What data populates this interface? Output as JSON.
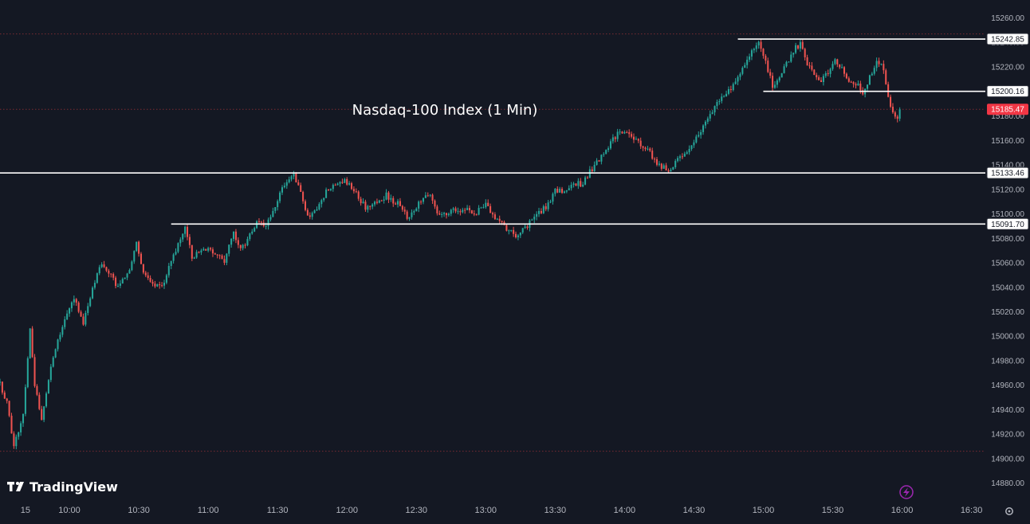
{
  "chart_data": {
    "type": "candlestick",
    "title": "Nasdaq-100 Index (1 Min)",
    "brand": "TradingView",
    "colors": {
      "background": "#141823",
      "up": "#26a69a",
      "down": "#ef5350",
      "level": "#ffffff",
      "last_price": "#f23645",
      "dotted": "#7a2a33",
      "text": "#b2b5be"
    },
    "ylim": [
      14870,
      15265
    ],
    "yticks": [
      14880,
      14900,
      14920,
      14940,
      14960,
      14980,
      15000,
      15020,
      15040,
      15060,
      15080,
      15100,
      15120,
      15140,
      15160,
      15180,
      15200,
      15220,
      15240,
      15260
    ],
    "xlim": [
      "09:30",
      "16:36"
    ],
    "xticks": [
      {
        "t": "09:41",
        "label": "15"
      },
      {
        "t": "10:00",
        "label": "10:00"
      },
      {
        "t": "10:30",
        "label": "10:30"
      },
      {
        "t": "11:00",
        "label": "11:00"
      },
      {
        "t": "11:30",
        "label": "11:30"
      },
      {
        "t": "12:00",
        "label": "12:00"
      },
      {
        "t": "12:30",
        "label": "12:30"
      },
      {
        "t": "13:00",
        "label": "13:00"
      },
      {
        "t": "13:30",
        "label": "13:30"
      },
      {
        "t": "14:00",
        "label": "14:00"
      },
      {
        "t": "14:30",
        "label": "14:30"
      },
      {
        "t": "15:00",
        "label": "15:00"
      },
      {
        "t": "15:30",
        "label": "15:30"
      },
      {
        "t": "16:00",
        "label": "16:00"
      },
      {
        "t": "16:30",
        "label": "16:30"
      }
    ],
    "levels": [
      {
        "label": "15242.85",
        "value": 15242.85,
        "from": "14:49"
      },
      {
        "label": "15200.16",
        "value": 15200.16,
        "from": "15:00"
      },
      {
        "label": "15133.46",
        "value": 15133.46,
        "from": "09:30"
      },
      {
        "label": "15091.70",
        "value": 15091.7,
        "from": "10:44"
      }
    ],
    "last_price": {
      "label": "15185.47",
      "value": 15185.47
    },
    "dotted_lines": [
      15247,
      15185.47,
      14906
    ],
    "price_path": [
      {
        "t": "09:30",
        "v": 14962
      },
      {
        "t": "09:33",
        "v": 14945
      },
      {
        "t": "09:36",
        "v": 14910
      },
      {
        "t": "09:40",
        "v": 14935
      },
      {
        "t": "09:43",
        "v": 15005
      },
      {
        "t": "09:45",
        "v": 14960
      },
      {
        "t": "09:48",
        "v": 14932
      },
      {
        "t": "09:52",
        "v": 14975
      },
      {
        "t": "09:57",
        "v": 15010
      },
      {
        "t": "10:02",
        "v": 15030
      },
      {
        "t": "10:06",
        "v": 15012
      },
      {
        "t": "10:10",
        "v": 15040
      },
      {
        "t": "10:14",
        "v": 15060
      },
      {
        "t": "10:18",
        "v": 15050
      },
      {
        "t": "10:21",
        "v": 15040
      },
      {
        "t": "10:25",
        "v": 15050
      },
      {
        "t": "10:29",
        "v": 15076
      },
      {
        "t": "10:32",
        "v": 15050
      },
      {
        "t": "10:37",
        "v": 15040
      },
      {
        "t": "10:41",
        "v": 15045
      },
      {
        "t": "10:45",
        "v": 15065
      },
      {
        "t": "10:50",
        "v": 15088
      },
      {
        "t": "10:53",
        "v": 15065
      },
      {
        "t": "10:58",
        "v": 15072
      },
      {
        "t": "11:03",
        "v": 15068
      },
      {
        "t": "11:07",
        "v": 15062
      },
      {
        "t": "11:11",
        "v": 15085
      },
      {
        "t": "11:14",
        "v": 15070
      },
      {
        "t": "11:17",
        "v": 15080
      },
      {
        "t": "11:21",
        "v": 15092
      },
      {
        "t": "11:25",
        "v": 15090
      },
      {
        "t": "11:28",
        "v": 15100
      },
      {
        "t": "11:33",
        "v": 15125
      },
      {
        "t": "11:37",
        "v": 15132
      },
      {
        "t": "11:40",
        "v": 15118
      },
      {
        "t": "11:43",
        "v": 15098
      },
      {
        "t": "11:47",
        "v": 15106
      },
      {
        "t": "11:51",
        "v": 15118
      },
      {
        "t": "11:55",
        "v": 15124
      },
      {
        "t": "11:59",
        "v": 15128
      },
      {
        "t": "12:04",
        "v": 15118
      },
      {
        "t": "12:08",
        "v": 15104
      },
      {
        "t": "12:13",
        "v": 15110
      },
      {
        "t": "12:17",
        "v": 15115
      },
      {
        "t": "12:22",
        "v": 15108
      },
      {
        "t": "12:27",
        "v": 15096
      },
      {
        "t": "12:31",
        "v": 15108
      },
      {
        "t": "12:36",
        "v": 15116
      },
      {
        "t": "12:40",
        "v": 15098
      },
      {
        "t": "12:45",
        "v": 15102
      },
      {
        "t": "12:50",
        "v": 15104
      },
      {
        "t": "12:55",
        "v": 15100
      },
      {
        "t": "13:00",
        "v": 15108
      },
      {
        "t": "13:04",
        "v": 15098
      },
      {
        "t": "13:09",
        "v": 15088
      },
      {
        "t": "13:14",
        "v": 15082
      },
      {
        "t": "13:18",
        "v": 15090
      },
      {
        "t": "13:22",
        "v": 15100
      },
      {
        "t": "13:26",
        "v": 15106
      },
      {
        "t": "13:30",
        "v": 15118
      },
      {
        "t": "13:34",
        "v": 15120
      },
      {
        "t": "13:38",
        "v": 15124
      },
      {
        "t": "13:42",
        "v": 15125
      },
      {
        "t": "13:47",
        "v": 15140
      },
      {
        "t": "13:51",
        "v": 15148
      },
      {
        "t": "13:55",
        "v": 15162
      },
      {
        "t": "13:59",
        "v": 15168
      },
      {
        "t": "14:03",
        "v": 15165
      },
      {
        "t": "14:07",
        "v": 15155
      },
      {
        "t": "14:11",
        "v": 15150
      },
      {
        "t": "14:15",
        "v": 15140
      },
      {
        "t": "14:19",
        "v": 15136
      },
      {
        "t": "14:23",
        "v": 15145
      },
      {
        "t": "14:27",
        "v": 15148
      },
      {
        "t": "14:31",
        "v": 15162
      },
      {
        "t": "14:35",
        "v": 15175
      },
      {
        "t": "14:39",
        "v": 15188
      },
      {
        "t": "14:43",
        "v": 15198
      },
      {
        "t": "14:47",
        "v": 15205
      },
      {
        "t": "14:51",
        "v": 15220
      },
      {
        "t": "14:55",
        "v": 15232
      },
      {
        "t": "14:58",
        "v": 15242
      },
      {
        "t": "15:01",
        "v": 15225
      },
      {
        "t": "15:04",
        "v": 15205
      },
      {
        "t": "15:07",
        "v": 15212
      },
      {
        "t": "15:10",
        "v": 15222
      },
      {
        "t": "15:13",
        "v": 15234
      },
      {
        "t": "15:16",
        "v": 15238
      },
      {
        "t": "15:19",
        "v": 15222
      },
      {
        "t": "15:22",
        "v": 15212
      },
      {
        "t": "15:25",
        "v": 15208
      },
      {
        "t": "15:28",
        "v": 15215
      },
      {
        "t": "15:31",
        "v": 15225
      },
      {
        "t": "15:34",
        "v": 15218
      },
      {
        "t": "15:37",
        "v": 15210
      },
      {
        "t": "15:40",
        "v": 15206
      },
      {
        "t": "15:43",
        "v": 15200
      },
      {
        "t": "15:46",
        "v": 15212
      },
      {
        "t": "15:49",
        "v": 15226
      },
      {
        "t": "15:52",
        "v": 15218
      },
      {
        "t": "15:54",
        "v": 15196
      },
      {
        "t": "15:56",
        "v": 15182
      },
      {
        "t": "15:58",
        "v": 15178
      },
      {
        "t": "15:59",
        "v": 15185.47
      }
    ]
  }
}
